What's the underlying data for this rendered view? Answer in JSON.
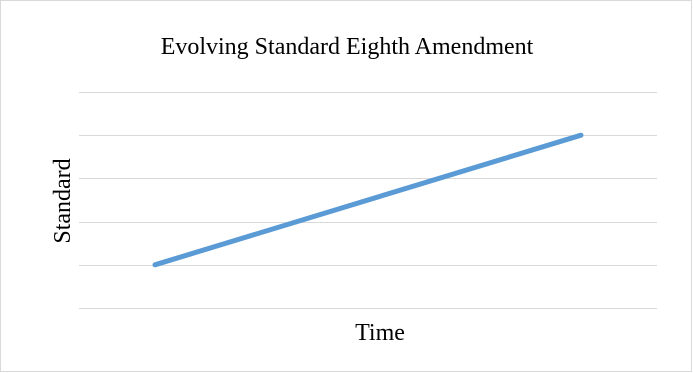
{
  "chart_data": {
    "type": "line",
    "title": "Evolving Standard Eighth Amendment",
    "xlabel": "Time",
    "ylabel": "Standard",
    "x": [
      0,
      1
    ],
    "series": [
      {
        "values": [
          1,
          4
        ],
        "color": "#5b9bd5"
      }
    ],
    "ylim": [
      0,
      5
    ],
    "yticks": [
      0,
      1,
      2,
      3,
      4,
      5
    ],
    "grid": true,
    "gridColor": "#d9d9d9",
    "legend": "none"
  }
}
